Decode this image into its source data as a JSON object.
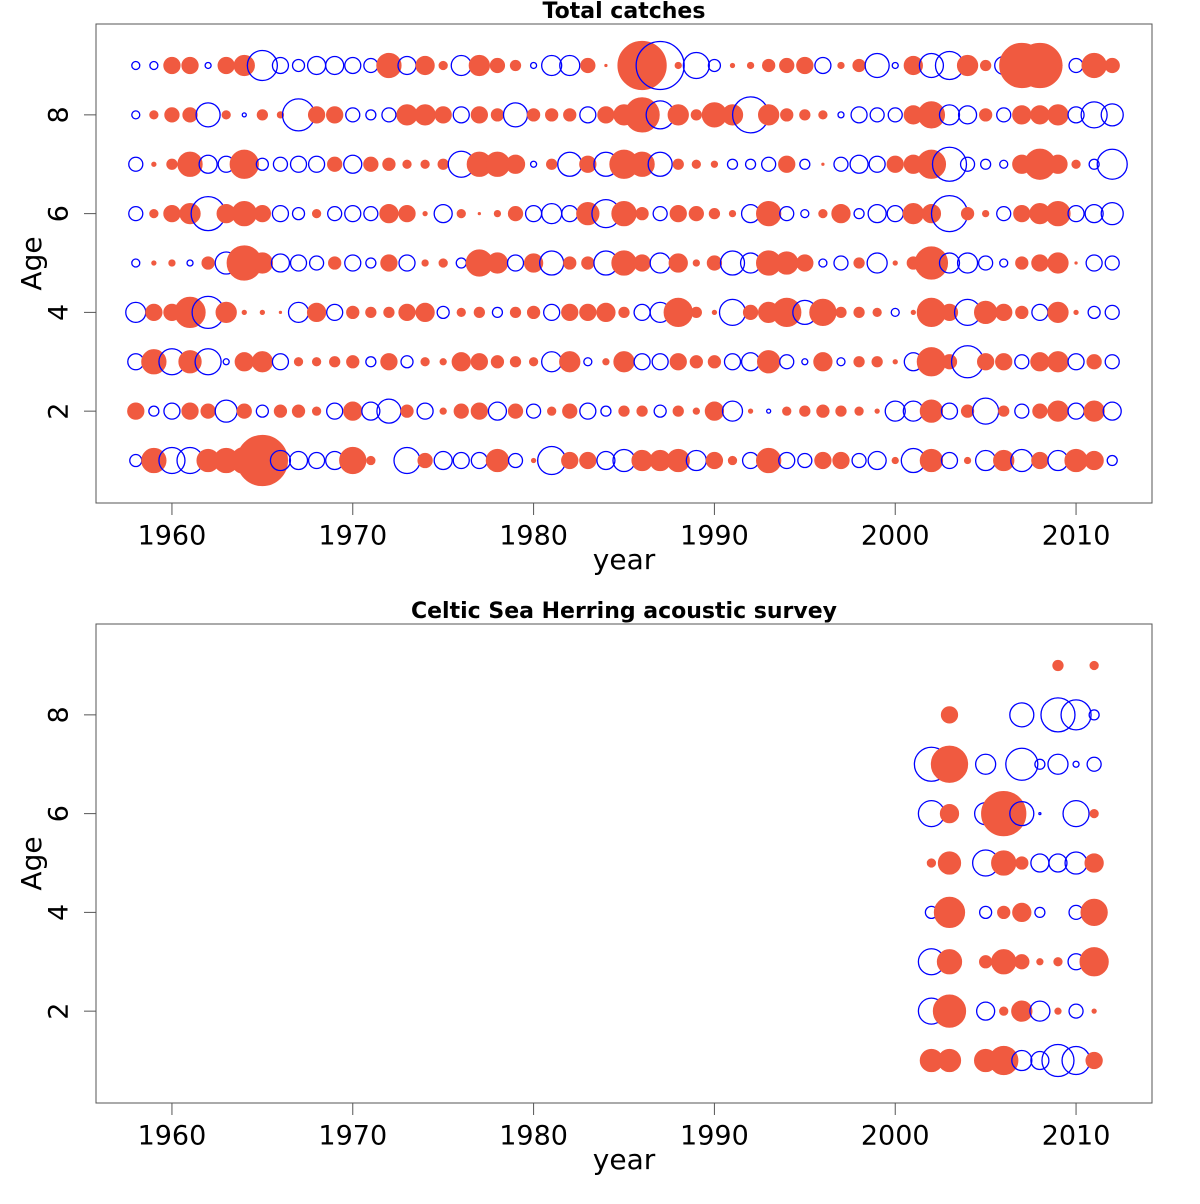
{
  "chart_data": [
    {
      "type": "bubble",
      "title": "Total catches",
      "xlabel": "year",
      "ylabel": "Age",
      "fill_color": "#f05a40",
      "open_color": "#0000ff",
      "xlim": [
        1955.8,
        2014.2
      ],
      "ylim": [
        0.14,
        9.84
      ],
      "xticks": [
        1960,
        1970,
        1980,
        1990,
        2000,
        2010
      ],
      "yticks": [
        2,
        4,
        6,
        8
      ],
      "x": [
        1958,
        1959,
        1960,
        1961,
        1962,
        1963,
        1964,
        1965,
        1966,
        1967,
        1968,
        1969,
        1970,
        1971,
        1972,
        1973,
        1974,
        1975,
        1976,
        1977,
        1978,
        1979,
        1980,
        1981,
        1982,
        1983,
        1984,
        1985,
        1986,
        1987,
        1988,
        1989,
        1990,
        1991,
        1992,
        1993,
        1994,
        1995,
        1996,
        1997,
        1998,
        1999,
        2000,
        2001,
        2002,
        2003,
        2004,
        2005,
        2006,
        2007,
        2008,
        2009,
        2010,
        2011,
        2012
      ],
      "y": [
        1,
        2,
        3,
        4,
        5,
        6,
        7,
        8,
        9
      ],
      "values": [
        [
          -6,
          12,
          -13,
          -13,
          11,
          12,
          13,
          25,
          -10,
          -9,
          -8,
          -9,
          13,
          4,
          0,
          -13,
          7,
          -9,
          -8,
          -8,
          11,
          -7,
          2,
          -14,
          8,
          8,
          -9,
          -11,
          10,
          10,
          11,
          -10,
          8,
          4,
          -8,
          12,
          -8,
          -7,
          8,
          8,
          -7,
          -9,
          3,
          -12,
          11,
          -8,
          3,
          -10,
          10,
          -11,
          8,
          -10,
          11,
          9,
          -5
        ],
        [
          8,
          -5,
          -8,
          8,
          7,
          -11,
          7,
          -6,
          6,
          6,
          4,
          -8,
          9,
          -9,
          -12,
          6,
          -8,
          3,
          7,
          8,
          -9,
          7,
          -7,
          4,
          7,
          -8,
          -5,
          5,
          5,
          -6,
          5,
          3,
          9,
          -10,
          2,
          -2,
          4,
          5,
          6,
          5,
          4,
          2,
          -10,
          -10,
          11,
          -8,
          6,
          -13,
          5,
          -7,
          7,
          10,
          -8,
          10,
          -9
        ],
        [
          -8,
          12,
          -13,
          11,
          -13,
          -3,
          9,
          10,
          -8,
          4,
          4,
          5,
          6,
          -5,
          8,
          -6,
          4,
          3,
          9,
          8,
          6,
          5,
          4,
          -10,
          10,
          -4,
          3,
          10,
          -8,
          -8,
          8,
          6,
          6,
          -8,
          -9,
          11,
          -7,
          -3,
          9,
          -4,
          5,
          5,
          2,
          -9,
          14,
          7,
          -16,
          8,
          8,
          -7,
          9,
          10,
          -8,
          7,
          -7
        ],
        [
          -10,
          8,
          8,
          15,
          -16,
          10,
          2,
          2,
          1,
          -10,
          9,
          -8,
          6,
          5,
          5,
          8,
          9,
          -6,
          4,
          5,
          -5,
          5,
          6,
          -8,
          8,
          8,
          9,
          5,
          -8,
          -10,
          14,
          5,
          2,
          -13,
          7,
          10,
          14,
          -12,
          13,
          5,
          5,
          4,
          -4,
          2,
          14,
          8,
          -13,
          11,
          8,
          6,
          -8,
          10,
          2,
          -6,
          -7
        ],
        [
          -4,
          2,
          3,
          -3,
          6,
          -11,
          17,
          10,
          -9,
          -8,
          -7,
          6,
          -8,
          -5,
          8,
          -8,
          3,
          4,
          -5,
          13,
          10,
          -8,
          9,
          -12,
          6,
          6,
          -12,
          12,
          8,
          -10,
          9,
          3,
          7,
          -12,
          -10,
          12,
          11,
          8,
          -4,
          -7,
          5,
          -10,
          2,
          6,
          16,
          -10,
          -10,
          -7,
          -4,
          6,
          8,
          10,
          1,
          -8,
          -7
        ],
        [
          -7,
          4,
          8,
          10,
          -17,
          9,
          12,
          8,
          -8,
          -6,
          4,
          -7,
          -8,
          -7,
          9,
          8,
          2,
          -9,
          4,
          1,
          3,
          7,
          -8,
          -10,
          -8,
          11,
          -14,
          12,
          6,
          -7,
          8,
          7,
          5,
          3,
          -9,
          12,
          -7,
          -4,
          4,
          9,
          -5,
          -9,
          -8,
          10,
          9,
          -18,
          6,
          3,
          -7,
          8,
          10,
          12,
          -8,
          -9,
          -11
        ],
        [
          -7,
          2,
          5,
          12,
          -9,
          -8,
          14,
          -6,
          -7,
          -8,
          -8,
          7,
          -9,
          7,
          6,
          4,
          4,
          5,
          -13,
          12,
          12,
          9,
          -3,
          5,
          -12,
          8,
          -12,
          14,
          12,
          -12,
          5,
          4,
          3,
          -5,
          -5,
          -7,
          8,
          -5,
          1,
          -7,
          -9,
          -8,
          8,
          9,
          14,
          -17,
          -7,
          -5,
          -4,
          9,
          15,
          9,
          4,
          -5,
          -15
        ],
        [
          -4,
          4,
          7,
          7,
          -12,
          4,
          -2,
          5,
          3,
          -16,
          8,
          8,
          -7,
          -5,
          -7,
          10,
          10,
          8,
          -8,
          8,
          6,
          -12,
          6,
          6,
          6,
          -8,
          8,
          10,
          17,
          -14,
          10,
          5,
          12,
          10,
          -18,
          10,
          6,
          5,
          4,
          -3,
          -8,
          -7,
          -7,
          9,
          13,
          -10,
          -9,
          6,
          -7,
          9,
          9,
          10,
          -8,
          -13,
          -11
        ],
        [
          -4,
          -4,
          8,
          8,
          -3,
          8,
          10,
          -15,
          -8,
          -6,
          -9,
          -9,
          -8,
          -7,
          12,
          -9,
          9,
          4,
          -10,
          10,
          7,
          5,
          -3,
          -10,
          -10,
          7,
          1,
          0,
          24,
          -24,
          3,
          -13,
          -6,
          2,
          3,
          6,
          7,
          8,
          -8,
          3,
          6,
          -12,
          -3,
          9,
          -12,
          -14,
          10,
          5,
          -9,
          22,
          22,
          4,
          -7,
          12,
          7
        ]
      ]
    },
    {
      "type": "bubble",
      "title": "Celtic Sea Herring acoustic survey",
      "xlabel": "year",
      "ylabel": "Age",
      "fill_color": "#f05a40",
      "open_color": "#0000ff",
      "xlim": [
        1955.8,
        2014.2
      ],
      "ylim": [
        0.14,
        9.84
      ],
      "xticks": [
        1960,
        1970,
        1980,
        1990,
        2000,
        2010
      ],
      "yticks": [
        2,
        4,
        6,
        8
      ],
      "x": [
        2002,
        2003,
        2005,
        2006,
        2007,
        2008,
        2009,
        2010,
        2011
      ],
      "y": [
        1,
        2,
        3,
        4,
        5,
        6,
        7,
        8,
        9
      ],
      "values": [
        [
          11,
          11,
          11,
          14,
          -10,
          -9,
          -16,
          -14,
          8
        ],
        [
          -13,
          16,
          -9,
          4,
          10,
          -10,
          3,
          -7,
          2
        ],
        [
          -13,
          12,
          6,
          12,
          7,
          3,
          4,
          -8,
          14
        ],
        [
          -6,
          15,
          -6,
          6,
          9,
          -5,
          null,
          -7,
          13
        ],
        [
          4,
          11,
          -13,
          12,
          6,
          -9,
          -9,
          -11,
          9
        ],
        [
          -13,
          9,
          -11,
          22,
          -12,
          -1,
          null,
          -13,
          4
        ],
        [
          -17,
          18,
          -10,
          null,
          -16,
          -5,
          -10,
          -3,
          -7
        ],
        [
          null,
          8,
          null,
          null,
          -12,
          null,
          -17,
          -15,
          -5
        ],
        [
          null,
          null,
          null,
          null,
          null,
          null,
          5,
          null,
          4
        ]
      ]
    }
  ]
}
